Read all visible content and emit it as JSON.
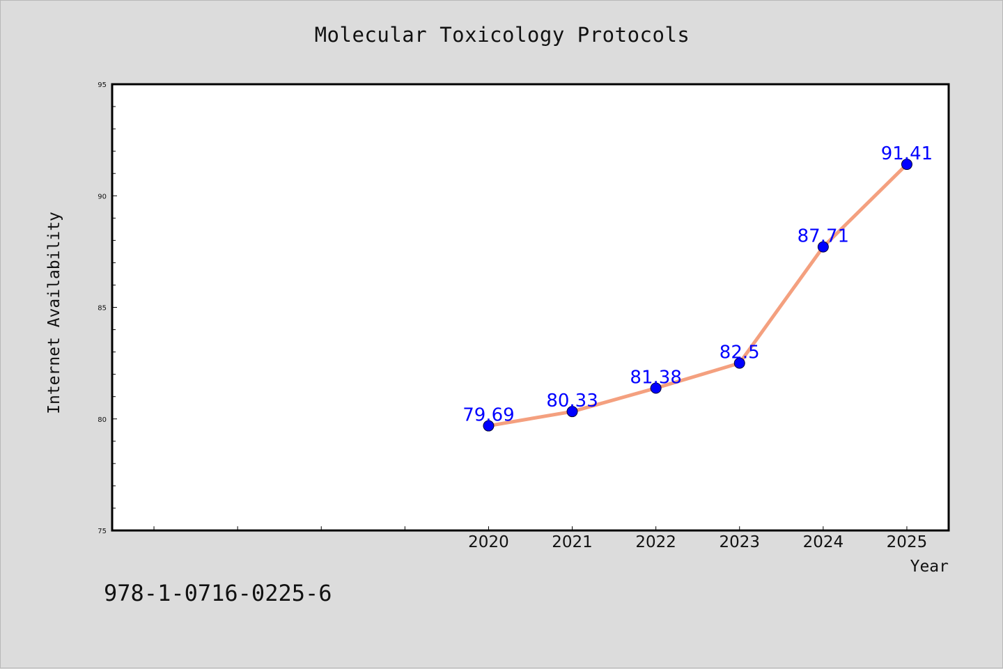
{
  "page": {
    "title": "Molecular Toxicology Protocols",
    "isbn": "978-1-0716-0225-6"
  },
  "colors": {
    "background": "#dcdcdc",
    "plot_background": "#ffffff",
    "line": "#f4a07f",
    "marker": "#0000ff",
    "data_label": "#0000ff"
  },
  "chart_data": {
    "type": "line",
    "title": "Molecular Toxicology Protocols",
    "xlabel": "Year",
    "ylabel": "Internet Availability",
    "x": [
      2020,
      2021,
      2022,
      2023,
      2024,
      2025
    ],
    "x_tick_labels": [
      "2020",
      "2021",
      "2022",
      "2023",
      "2024",
      "2025"
    ],
    "xlim": [
      2015.5,
      2025.5
    ],
    "ylim": [
      75,
      95
    ],
    "y_ticks": [
      75,
      80,
      85,
      90,
      95
    ],
    "y_tick_labels": [
      "75",
      "80",
      "85",
      "90",
      "95"
    ],
    "series": [
      {
        "values": [
          79.69,
          80.33,
          81.38,
          82.5,
          87.71,
          91.41
        ],
        "data_labels": [
          "79.69",
          "80.33",
          "81.38",
          "82.5",
          "87.71",
          "91.41"
        ]
      }
    ],
    "grid": false,
    "legend": "none"
  }
}
